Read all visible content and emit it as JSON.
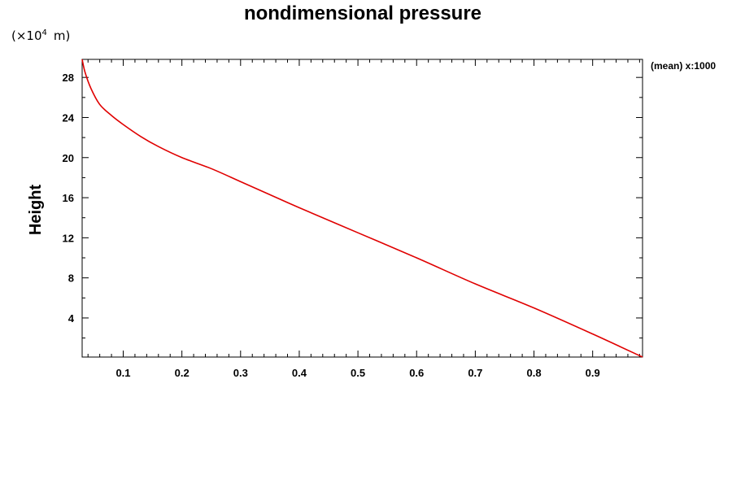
{
  "chart_data": {
    "type": "line",
    "title": "nondimensional pressure",
    "ylabel": "Height",
    "y_unit": "m",
    "y_scale_base": "10",
    "y_scale_exp": "4",
    "annotation": "(mean) x:1000",
    "xlim": [
      0.03,
      0.985
    ],
    "ylim": [
      0.1,
      29.8
    ],
    "x_ticks": [
      0.1,
      0.2,
      0.3,
      0.4,
      0.5,
      0.6,
      0.7,
      0.8,
      0.9
    ],
    "x_tick_labels": [
      "0.1",
      "0.2",
      "0.3",
      "0.4",
      "0.5",
      "0.6",
      "0.7",
      "0.8",
      "0.9"
    ],
    "y_ticks": [
      4,
      8,
      12,
      16,
      20,
      24,
      28
    ],
    "y_tick_labels": [
      "4",
      "8",
      "12",
      "16",
      "20",
      "24",
      "28"
    ],
    "grid": false,
    "line_color": "#e00000",
    "series": [
      {
        "x": [
          0.03,
          0.035,
          0.045,
          0.06,
          0.08,
          0.1,
          0.13,
          0.16,
          0.2,
          0.25,
          0.3,
          0.35,
          0.4,
          0.5,
          0.6,
          0.7,
          0.8,
          0.9,
          0.985
        ],
        "y": [
          29.8,
          28.5,
          26.9,
          25.3,
          24.2,
          23.3,
          22.1,
          21.1,
          20.0,
          18.9,
          17.6,
          16.3,
          15.0,
          12.5,
          10.0,
          7.4,
          5.0,
          2.4,
          0.1
        ]
      }
    ]
  }
}
